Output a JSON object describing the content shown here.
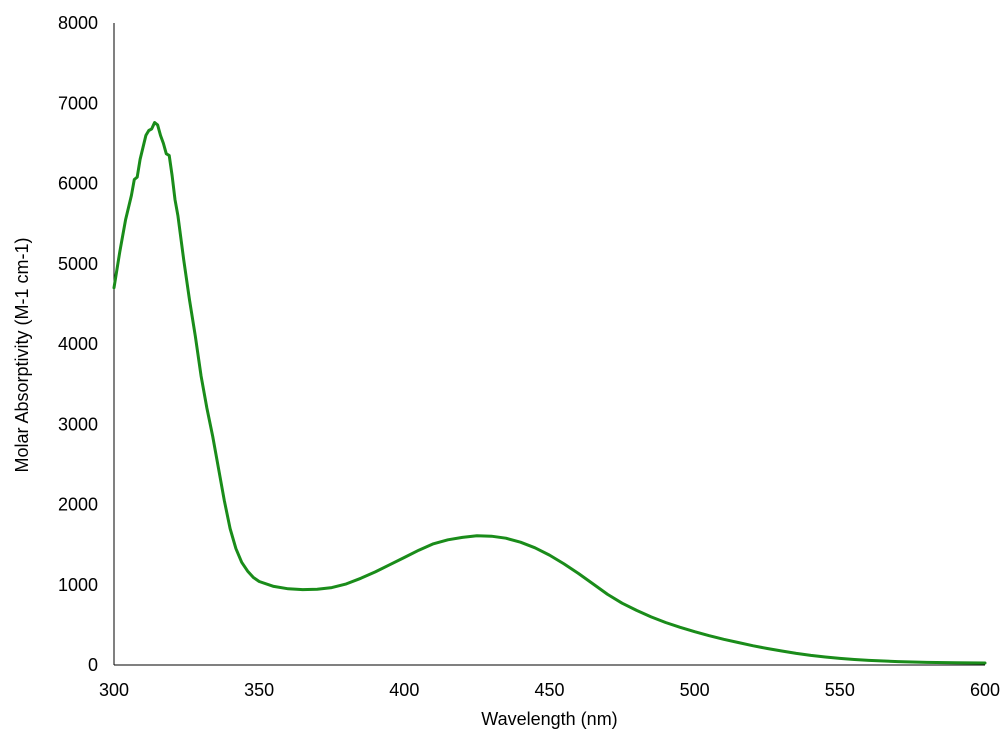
{
  "chart_data": {
    "type": "line",
    "title": "",
    "xlabel": "Wavelength (nm)",
    "ylabel": "Molar Absorptivity (M-1 cm-1)",
    "xlim": [
      300,
      600
    ],
    "ylim": [
      0,
      8000
    ],
    "x_ticks": [
      "300",
      "350",
      "400",
      "450",
      "500",
      "550",
      "600"
    ],
    "y_ticks": [
      "0",
      "1000",
      "2000",
      "3000",
      "4000",
      "5000",
      "6000",
      "7000",
      "8000"
    ],
    "grid": false,
    "legend": "none",
    "series": [
      {
        "color": "#1a8c1a",
        "points": [
          [
            300,
            4700
          ],
          [
            302,
            5150
          ],
          [
            304,
            5550
          ],
          [
            306,
            5850
          ],
          [
            307,
            6050
          ],
          [
            308,
            6080
          ],
          [
            309,
            6300
          ],
          [
            310,
            6450
          ],
          [
            311,
            6600
          ],
          [
            312,
            6660
          ],
          [
            313,
            6680
          ],
          [
            314,
            6760
          ],
          [
            315,
            6730
          ],
          [
            316,
            6600
          ],
          [
            317,
            6500
          ],
          [
            318,
            6370
          ],
          [
            319,
            6350
          ],
          [
            320,
            6100
          ],
          [
            321,
            5800
          ],
          [
            322,
            5600
          ],
          [
            324,
            5050
          ],
          [
            326,
            4550
          ],
          [
            328,
            4100
          ],
          [
            330,
            3600
          ],
          [
            332,
            3200
          ],
          [
            334,
            2850
          ],
          [
            336,
            2450
          ],
          [
            338,
            2050
          ],
          [
            340,
            1700
          ],
          [
            342,
            1450
          ],
          [
            344,
            1280
          ],
          [
            346,
            1170
          ],
          [
            348,
            1090
          ],
          [
            350,
            1040
          ],
          [
            355,
            980
          ],
          [
            360,
            950
          ],
          [
            365,
            940
          ],
          [
            370,
            945
          ],
          [
            375,
            965
          ],
          [
            380,
            1010
          ],
          [
            385,
            1080
          ],
          [
            390,
            1160
          ],
          [
            395,
            1250
          ],
          [
            400,
            1340
          ],
          [
            405,
            1430
          ],
          [
            410,
            1510
          ],
          [
            415,
            1560
          ],
          [
            420,
            1590
          ],
          [
            425,
            1610
          ],
          [
            430,
            1605
          ],
          [
            435,
            1580
          ],
          [
            440,
            1530
          ],
          [
            445,
            1460
          ],
          [
            450,
            1370
          ],
          [
            455,
            1260
          ],
          [
            460,
            1140
          ],
          [
            465,
            1010
          ],
          [
            470,
            880
          ],
          [
            475,
            770
          ],
          [
            480,
            680
          ],
          [
            485,
            600
          ],
          [
            490,
            530
          ],
          [
            495,
            470
          ],
          [
            500,
            415
          ],
          [
            505,
            365
          ],
          [
            510,
            320
          ],
          [
            515,
            280
          ],
          [
            520,
            240
          ],
          [
            525,
            205
          ],
          [
            530,
            175
          ],
          [
            535,
            145
          ],
          [
            540,
            120
          ],
          [
            545,
            100
          ],
          [
            550,
            82
          ],
          [
            555,
            68
          ],
          [
            560,
            57
          ],
          [
            570,
            42
          ],
          [
            580,
            33
          ],
          [
            590,
            28
          ],
          [
            600,
            25
          ]
        ]
      }
    ]
  }
}
